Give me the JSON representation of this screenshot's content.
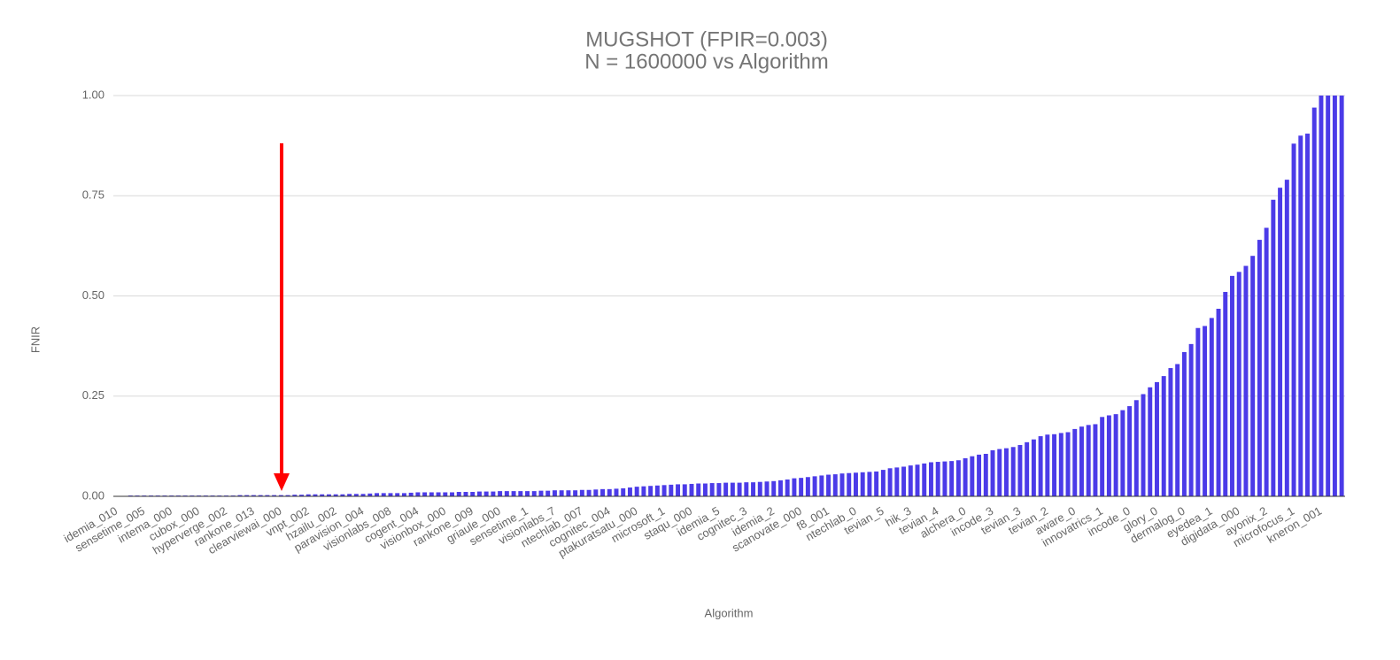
{
  "chart_data": {
    "type": "bar",
    "title": "MUGSHOT (FPIR=0.003)",
    "subtitle": "N = 1600000 vs Algorithm",
    "x_label": "Algorithm",
    "y_label": "FNIR",
    "color": "#4b3be8",
    "grid": true,
    "ylim": [
      0,
      1
    ],
    "yticks": [
      {
        "value": 0,
        "label": "0.00"
      },
      {
        "value": 0.25,
        "label": "0.25"
      },
      {
        "value": 0.5,
        "label": "0.50"
      },
      {
        "value": 0.75,
        "label": "0.75"
      },
      {
        "value": 1,
        "label": "1.00"
      }
    ],
    "categories": [
      "idemia_010",
      null,
      null,
      null,
      "sensetime_005",
      null,
      null,
      null,
      "intema_000",
      null,
      null,
      null,
      "cubox_000",
      null,
      null,
      null,
      "hyperverge_002",
      null,
      null,
      null,
      "rankone_013",
      null,
      null,
      null,
      "clearviewai_000",
      null,
      null,
      null,
      "vnpt_002",
      null,
      null,
      null,
      "hzailu_002",
      null,
      null,
      null,
      "paravision_004",
      null,
      null,
      null,
      "visionlabs_008",
      null,
      null,
      null,
      "cogent_004",
      null,
      null,
      null,
      "visionbox_000",
      null,
      null,
      null,
      "rankone_009",
      null,
      null,
      null,
      "griaule_000",
      null,
      null,
      null,
      "sensetime_1",
      null,
      null,
      null,
      "visionlabs_7",
      null,
      null,
      null,
      "ntechlab_007",
      null,
      null,
      null,
      "cognitec_004",
      null,
      null,
      null,
      "ptakuratsatu_000",
      null,
      null,
      null,
      "microsoft_1",
      null,
      null,
      null,
      "staqu_000",
      null,
      null,
      null,
      "idemia_5",
      null,
      null,
      null,
      "cognitec_3",
      null,
      null,
      null,
      "idemia_2",
      null,
      null,
      null,
      "scanovate_000",
      null,
      null,
      null,
      "f8_001",
      null,
      null,
      null,
      "ntechlab_0",
      null,
      null,
      null,
      "tevian_5",
      null,
      null,
      null,
      "hik_3",
      null,
      null,
      null,
      "tevian_4",
      null,
      null,
      null,
      "alchera_0",
      null,
      null,
      null,
      "incode_3",
      null,
      null,
      null,
      "tevian_3",
      null,
      null,
      null,
      "tevian_2",
      null,
      null,
      null,
      "aware_0",
      null,
      null,
      null,
      "innovatrics_1",
      null,
      null,
      null,
      "incode_0",
      null,
      null,
      null,
      "glory_0",
      null,
      null,
      null,
      "dermalog_0",
      null,
      null,
      null,
      "eyedea_1",
      null,
      null,
      null,
      "digidata_000",
      null,
      null,
      null,
      "ayonix_2",
      null,
      null,
      null,
      "microfocus_1",
      null,
      null,
      null,
      "kneron_001",
      null,
      null,
      null
    ],
    "values": [
      0.001,
      0.001,
      0.002,
      0.002,
      0.002,
      0.002,
      0.002,
      0.002,
      0.002,
      0.002,
      0.002,
      0.002,
      0.002,
      0.002,
      0.002,
      0.002,
      0.002,
      0.002,
      0.003,
      0.003,
      0.003,
      0.003,
      0.003,
      0.003,
      0.003,
      0.003,
      0.004,
      0.004,
      0.005,
      0.005,
      0.005,
      0.005,
      0.005,
      0.005,
      0.006,
      0.006,
      0.006,
      0.007,
      0.008,
      0.008,
      0.008,
      0.008,
      0.008,
      0.009,
      0.01,
      0.01,
      0.01,
      0.01,
      0.01,
      0.01,
      0.011,
      0.011,
      0.011,
      0.012,
      0.012,
      0.012,
      0.013,
      0.013,
      0.013,
      0.013,
      0.013,
      0.013,
      0.014,
      0.014,
      0.015,
      0.015,
      0.015,
      0.015,
      0.016,
      0.016,
      0.017,
      0.018,
      0.018,
      0.019,
      0.02,
      0.022,
      0.024,
      0.025,
      0.026,
      0.027,
      0.028,
      0.029,
      0.03,
      0.03,
      0.031,
      0.032,
      0.032,
      0.033,
      0.033,
      0.034,
      0.034,
      0.034,
      0.035,
      0.035,
      0.036,
      0.037,
      0.038,
      0.04,
      0.042,
      0.045,
      0.046,
      0.048,
      0.05,
      0.052,
      0.054,
      0.055,
      0.057,
      0.058,
      0.059,
      0.06,
      0.061,
      0.062,
      0.066,
      0.07,
      0.072,
      0.074,
      0.077,
      0.079,
      0.082,
      0.085,
      0.086,
      0.087,
      0.088,
      0.09,
      0.095,
      0.1,
      0.104,
      0.106,
      0.115,
      0.118,
      0.12,
      0.123,
      0.128,
      0.135,
      0.142,
      0.15,
      0.154,
      0.155,
      0.158,
      0.16,
      0.168,
      0.174,
      0.178,
      0.18,
      0.198,
      0.202,
      0.205,
      0.215,
      0.225,
      0.24,
      0.255,
      0.272,
      0.285,
      0.3,
      0.32,
      0.33,
      0.36,
      0.38,
      0.42,
      0.425,
      0.445,
      0.468,
      0.51,
      0.55,
      0.56,
      0.575,
      0.6,
      0.64,
      0.67,
      0.74,
      0.77,
      0.79,
      0.88,
      0.9,
      0.905,
      0.97,
      1.0,
      1.0,
      1.0,
      1.0
    ]
  }
}
